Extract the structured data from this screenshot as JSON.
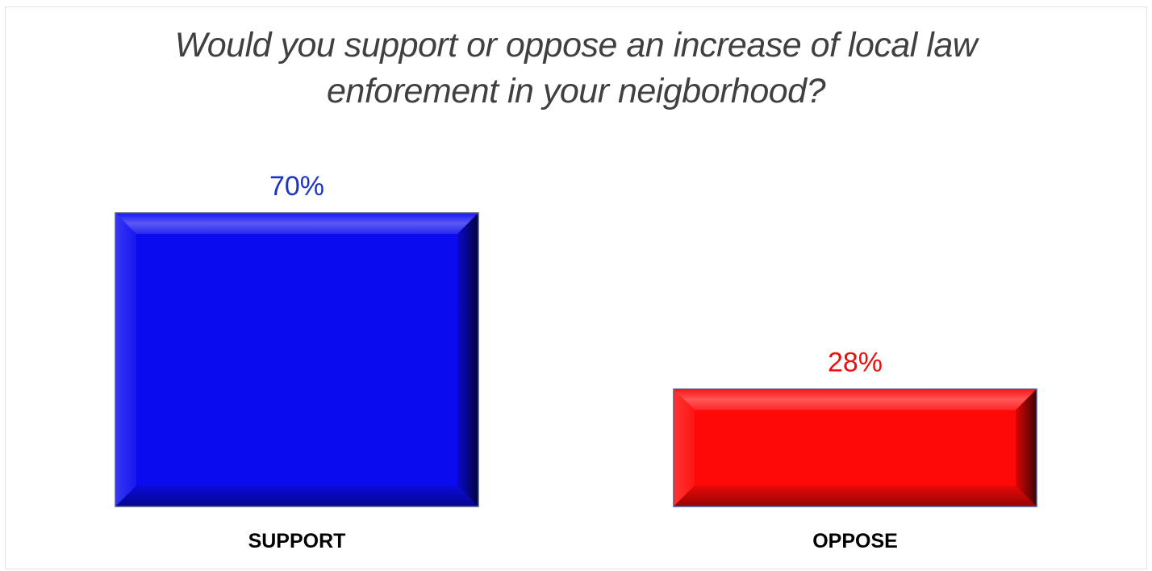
{
  "chart_data": {
    "type": "bar",
    "title_lines": [
      "Would you support or oppose an increase of local law",
      "enforement in your neigborhood?"
    ],
    "categories": [
      "SUPPORT",
      "OPPOSE"
    ],
    "values": [
      70,
      28
    ],
    "data_labels": [
      "70%",
      "28%"
    ],
    "colors": [
      "#0b0bf0",
      "#ff0808"
    ],
    "label_colors": [
      "#1a35c4",
      "#ee0e0e"
    ],
    "ylim": [
      0,
      100
    ],
    "grid": false,
    "legend": "none"
  }
}
